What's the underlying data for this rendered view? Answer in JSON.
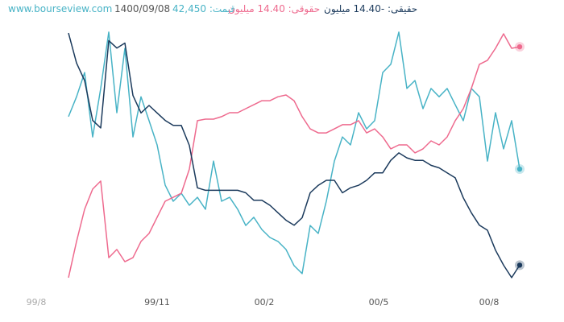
{
  "header": {
    "site": "www.bourseview.com",
    "date": "1400/09/08",
    "price": "قیمت: 42,450",
    "legal": "حقوقی: 14.40 میلیون",
    "individual": "حقیقی: -14.40 میلیون"
  },
  "chart_data": {
    "type": "line",
    "x": [
      0,
      1,
      2,
      3,
      4,
      5,
      6,
      7,
      8,
      9,
      10,
      11,
      12,
      13,
      14,
      15,
      16,
      17,
      18,
      19,
      20,
      21,
      22,
      23,
      24,
      25,
      26,
      27,
      28,
      29,
      30,
      31,
      32,
      33,
      34,
      35,
      36,
      37,
      38,
      39,
      40,
      41,
      42,
      43,
      44,
      45,
      46,
      47,
      48,
      49,
      50,
      51,
      52,
      53,
      54,
      55,
      56
    ],
    "xlim": [
      -4,
      60
    ],
    "xticks": [
      {
        "value": -4,
        "label": "99/8"
      },
      {
        "value": 11,
        "label": "99/11"
      },
      {
        "value": 24.3,
        "label": "00/2"
      },
      {
        "value": 38.5,
        "label": "00/5"
      },
      {
        "value": 52.2,
        "label": "00/8"
      }
    ],
    "ylim": [
      0,
      100
    ],
    "series": [
      {
        "color": "#48b3c6",
        "values": [
          65.5,
          73.5,
          83.2,
          57.4,
          76.8,
          99.4,
          67.1,
          92.9,
          57.4,
          73.5,
          63.9,
          54.2,
          38.1,
          31.6,
          34.8,
          30,
          33.2,
          28.4,
          47.7,
          31.6,
          33.2,
          28.4,
          21.9,
          25.2,
          20.3,
          17.1,
          15.5,
          12.3,
          5.8,
          2.6,
          21.9,
          18.7,
          31.6,
          47.7,
          57.4,
          54.2,
          67.1,
          60.6,
          63.9,
          83.2,
          86.5,
          99.4,
          76.8,
          80,
          68.7,
          76.8,
          73.5,
          76.8,
          70.3,
          63.9,
          76.8,
          73.5,
          47.7,
          67.1,
          52.6,
          63.9,
          44.5
        ]
      },
      {
        "color": "#ee6a8e",
        "values": [
          1,
          15.5,
          28.4,
          36.5,
          39.7,
          9,
          12.3,
          7.4,
          9,
          15.5,
          18.7,
          25.2,
          31.6,
          33.2,
          34.8,
          44.5,
          63.9,
          64.5,
          64.5,
          65.5,
          67.1,
          67.1,
          68.7,
          70.3,
          71.9,
          71.9,
          73.5,
          74.2,
          71.9,
          65.5,
          60.6,
          59,
          59,
          60.6,
          62.3,
          62.3,
          63.9,
          59,
          60.6,
          57.4,
          52.6,
          54.2,
          54.2,
          51,
          52.6,
          55.8,
          54.2,
          57.4,
          63.9,
          68.7,
          76.8,
          86.5,
          88.1,
          92.9,
          98.7,
          92.9,
          93.5
        ]
      },
      {
        "color": "#1b3a5c",
        "values": [
          99,
          87,
          80,
          64,
          61,
          96,
          93,
          95,
          74,
          67,
          70,
          67,
          64,
          62,
          62,
          54,
          37,
          36,
          36,
          36,
          36,
          36,
          35,
          32,
          32,
          30,
          27,
          24,
          22,
          25,
          35,
          38,
          40,
          40,
          35,
          37,
          38,
          40,
          43,
          43,
          48,
          51,
          49,
          48,
          48,
          46,
          45,
          43,
          41,
          33,
          27,
          22,
          20,
          12,
          6,
          1,
          6
        ]
      }
    ]
  }
}
